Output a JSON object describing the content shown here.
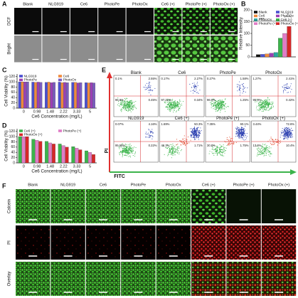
{
  "panel_labels": [
    "A",
    "B",
    "C",
    "D",
    "E",
    "F"
  ],
  "panel_a": {
    "columns": [
      "Blank",
      "NLG919",
      "Ce6",
      "PhotoPe",
      "PhotoOx",
      "Ce6 (+)",
      "PhotoPe (+)",
      "PhotoOx (+)"
    ],
    "rows": [
      "DCF",
      "Bright"
    ]
  },
  "chart_data": [
    {
      "type": "bar",
      "y_label": "Relative Intensity",
      "ylim": [
        0,
        200
      ],
      "yticks": [
        0,
        50,
        100,
        150,
        200
      ],
      "annotations": [
        "***",
        "*"
      ],
      "series": [
        {
          "name": "Blank",
          "color": "#111111",
          "values": [
            10
          ]
        },
        {
          "name": "NLG919",
          "color": "#4b4fd0",
          "values": [
            11
          ]
        },
        {
          "name": "Ce6",
          "color": "#f08a3c",
          "values": [
            13
          ]
        },
        {
          "name": "PhotoPe",
          "color": "#9b3fb5",
          "values": [
            16
          ]
        },
        {
          "name": "PhotoOx",
          "color": "#2aa6a0",
          "values": [
            19
          ]
        },
        {
          "name": "Ce6 (+)",
          "color": "#3cb44b",
          "values": [
            80
          ]
        },
        {
          "name": "PhotoPe (+)",
          "color": "#e07cc6",
          "values": [
            100
          ]
        },
        {
          "name": "PhotoOx (+)",
          "color": "#d62728",
          "values": [
            130
          ]
        }
      ]
    },
    {
      "type": "bar",
      "y_label": "Cell Viability (%)",
      "x_label": "Ce6 Concentration (mg/L)",
      "categories": [
        "0",
        "0.98",
        "1.48",
        "2.22",
        "3.33",
        "5"
      ],
      "ylim": [
        0,
        130
      ],
      "yticks": [
        0,
        20,
        40,
        60,
        80,
        100,
        120
      ],
      "series": [
        {
          "name": "NLG919",
          "color": "#4b4fd0",
          "values": [
            100,
            99,
            98,
            99,
            98,
            97
          ]
        },
        {
          "name": "Ce6",
          "color": "#f08a3c",
          "values": [
            100,
            98,
            99,
            97,
            98,
            96
          ]
        },
        {
          "name": "PhotoPe",
          "color": "#9b3fb5",
          "values": [
            100,
            99,
            97,
            98,
            96,
            97
          ]
        },
        {
          "name": "PhotoOx",
          "color": "#7a5cc0",
          "values": [
            100,
            98,
            98,
            97,
            97,
            96
          ]
        }
      ]
    },
    {
      "type": "bar",
      "y_label": "Cell Viability (%)",
      "x_label": "Ce6 Concentration (mg/L)",
      "categories": [
        "0",
        "0.98",
        "1.48",
        "2.22",
        "3.33",
        "5"
      ],
      "ylim": [
        0,
        130
      ],
      "yticks": [
        0,
        20,
        40,
        60,
        80,
        100,
        120
      ],
      "series": [
        {
          "name": "Ce6 (+)",
          "color": "#3cb44b",
          "values": [
            100,
            90,
            82,
            72,
            62,
            46
          ]
        },
        {
          "name": "PhotoPe (+)",
          "color": "#e07cc6",
          "values": [
            100,
            86,
            76,
            66,
            56,
            40
          ]
        },
        {
          "name": "PhotoOx (+)",
          "color": "#d62728",
          "values": [
            100,
            82,
            72,
            60,
            50,
            32
          ]
        }
      ]
    }
  ],
  "panel_e": {
    "y_label": "PI",
    "x_label": "FITC",
    "plots": [
      {
        "title": "Blank",
        "quadrants": [
          "0.1%",
          "2.55%",
          "96.9%",
          "0.45%"
        ]
      },
      {
        "title": "Ce6",
        "quadrants": [
          "0.17%",
          "2.27%",
          "97.22%",
          "0.34%"
        ]
      },
      {
        "title": "PhotoPe",
        "quadrants": [
          "0.27%",
          "1.58%",
          "96.9%",
          "1.25%"
        ]
      },
      {
        "title": "PhotoOx",
        "quadrants": [
          "1.27%",
          "2.41%",
          "95.9%",
          "0.42%"
        ]
      },
      {
        "title": "NLG919",
        "quadrants": [
          "0.07%",
          "4.16%",
          "95.55%",
          "0.22%"
        ]
      },
      {
        "title": "Ce6 (+)",
        "quadrants": [
          "1.69%",
          "50.3%",
          "46.3%",
          "1.71%"
        ]
      },
      {
        "title": "PhotoPe (+)",
        "quadrants": [
          "7.35%",
          "60.1%",
          "30.8%",
          "1.75%"
        ]
      },
      {
        "title": "PhotoOx (+)",
        "quadrants": [
          "3.44%",
          "72.6%",
          "13.6%",
          "10.4%"
        ]
      }
    ]
  },
  "panel_f": {
    "columns": [
      "Blank",
      "NLG919",
      "Ce6",
      "PhotoPe",
      "PhotoOx",
      "Ce6 (+)",
      "PhotoPe (+)",
      "PhotoOx (+)"
    ],
    "rows": [
      "Calcein",
      "PI",
      "Overlay"
    ]
  }
}
